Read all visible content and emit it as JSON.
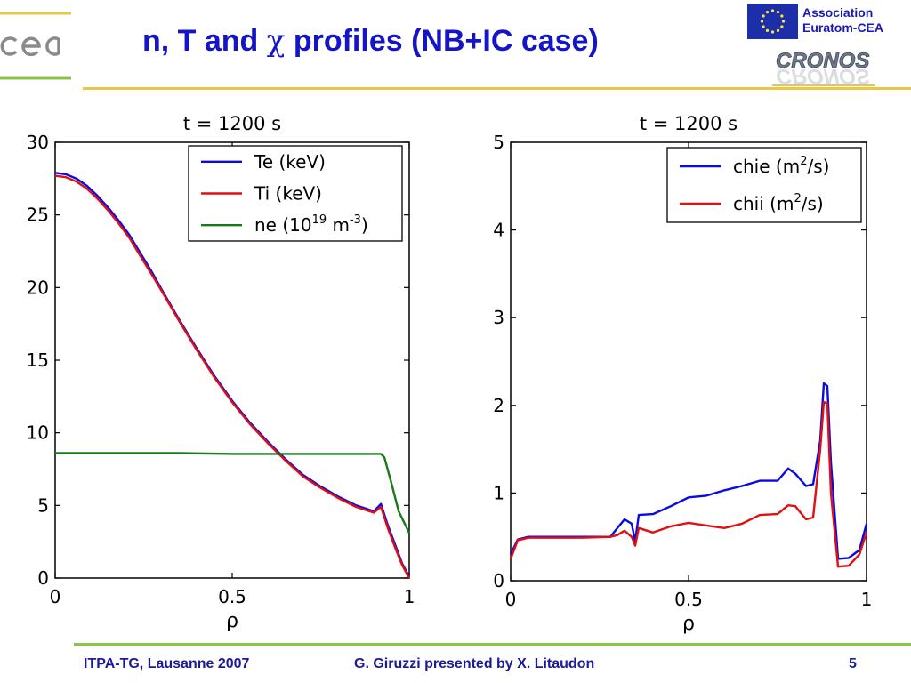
{
  "slide": {
    "title_pre": "n, T and ",
    "title_chi": "χ",
    "title_post": " profiles (NB+IC case)",
    "association": [
      "Association",
      "Euratom-CEA"
    ],
    "cronos": "CRONOS",
    "footer_left": "ITPA-TG, Lausanne  2007",
    "footer_center": "G. Giruzzi presented by X. Litaudon",
    "footer_page": "5",
    "colors": {
      "title": "#1515c8",
      "header_line": "#e8c845",
      "footer_line": "#8cc34a",
      "footer_text": "#1a1a9a",
      "cea_logo": "#8a8a8a",
      "eu_flag": "#1c2fa8"
    },
    "icons": [
      "cea-logo",
      "eu-flag-icon",
      "cronos-logo"
    ]
  },
  "chart_data": [
    {
      "type": "line",
      "title": "t = 1200 s",
      "xlabel": "ρ",
      "ylabel": "",
      "xlim": [
        0,
        1
      ],
      "ylim": [
        0,
        30
      ],
      "xticks": [
        "0",
        "0.5",
        "1"
      ],
      "yticks": [
        "0",
        "5",
        "10",
        "15",
        "20",
        "25",
        "30"
      ],
      "legend_position": "top-right",
      "grid": false,
      "series": [
        {
          "name": "Te (keV)",
          "legend": [
            "Te (keV)"
          ],
          "color": "#0a0ae6",
          "x": [
            0,
            0.03,
            0.06,
            0.09,
            0.12,
            0.15,
            0.18,
            0.21,
            0.24,
            0.27,
            0.3,
            0.35,
            0.4,
            0.45,
            0.5,
            0.55,
            0.6,
            0.65,
            0.7,
            0.75,
            0.8,
            0.85,
            0.9,
            0.92,
            0.94,
            0.96,
            0.98,
            1.0
          ],
          "y": [
            27.9,
            27.8,
            27.5,
            27.0,
            26.3,
            25.5,
            24.6,
            23.6,
            22.4,
            21.2,
            19.9,
            17.8,
            15.8,
            13.9,
            12.2,
            10.7,
            9.4,
            8.2,
            7.1,
            6.3,
            5.6,
            5.0,
            4.6,
            5.1,
            3.6,
            2.3,
            1.0,
            0.1
          ]
        },
        {
          "name": "Ti (keV)",
          "legend": [
            "Ti (keV)"
          ],
          "color": "#e01010",
          "x": [
            0,
            0.03,
            0.06,
            0.09,
            0.12,
            0.15,
            0.18,
            0.21,
            0.24,
            0.27,
            0.3,
            0.35,
            0.4,
            0.45,
            0.5,
            0.55,
            0.6,
            0.65,
            0.7,
            0.75,
            0.8,
            0.85,
            0.9,
            0.92,
            0.94,
            0.96,
            0.98,
            1.0
          ],
          "y": [
            27.7,
            27.6,
            27.3,
            26.8,
            26.1,
            25.3,
            24.4,
            23.4,
            22.2,
            21.0,
            19.8,
            17.7,
            15.7,
            13.8,
            12.1,
            10.6,
            9.3,
            8.1,
            7.0,
            6.2,
            5.5,
            4.9,
            4.5,
            4.9,
            3.4,
            2.1,
            0.9,
            0.0
          ]
        },
        {
          "name": "ne (10^19 m^-3)",
          "legend": [
            "ne (10",
            "19",
            " m",
            "-3",
            ")"
          ],
          "color": "#1a7a1a",
          "x": [
            0,
            0.2,
            0.35,
            0.5,
            0.7,
            0.85,
            0.92,
            0.93,
            0.95,
            0.97,
            1.0
          ],
          "y": [
            8.6,
            8.6,
            8.6,
            8.55,
            8.55,
            8.55,
            8.55,
            8.3,
            6.5,
            4.6,
            3.1
          ]
        }
      ]
    },
    {
      "type": "line",
      "title": "t = 1200 s",
      "xlabel": "ρ",
      "ylabel": "",
      "xlim": [
        0,
        1
      ],
      "ylim": [
        0,
        5
      ],
      "xticks": [
        "0",
        "0.5",
        "1"
      ],
      "yticks": [
        "0",
        "1",
        "2",
        "3",
        "4",
        "5"
      ],
      "legend_position": "top-right",
      "grid": false,
      "series": [
        {
          "name": "chie (m^2/s)",
          "legend": [
            "chie (m",
            "2",
            "/s)"
          ],
          "color": "#0a0ae6",
          "x": [
            0,
            0.02,
            0.05,
            0.1,
            0.2,
            0.28,
            0.3,
            0.32,
            0.34,
            0.35,
            0.36,
            0.4,
            0.45,
            0.5,
            0.55,
            0.6,
            0.65,
            0.7,
            0.75,
            0.78,
            0.8,
            0.83,
            0.85,
            0.87,
            0.88,
            0.89,
            0.9,
            0.92,
            0.95,
            0.98,
            1.0
          ],
          "y": [
            0.3,
            0.47,
            0.5,
            0.5,
            0.5,
            0.5,
            0.6,
            0.7,
            0.65,
            0.45,
            0.75,
            0.76,
            0.85,
            0.95,
            0.97,
            1.03,
            1.08,
            1.14,
            1.14,
            1.28,
            1.22,
            1.08,
            1.1,
            1.6,
            2.25,
            2.22,
            1.35,
            0.25,
            0.26,
            0.35,
            0.65
          ]
        },
        {
          "name": "chii (m^2/s)",
          "legend": [
            "chii (m",
            "2",
            "/s)"
          ],
          "color": "#e01010",
          "x": [
            0,
            0.02,
            0.05,
            0.1,
            0.2,
            0.28,
            0.3,
            0.32,
            0.34,
            0.35,
            0.36,
            0.4,
            0.45,
            0.5,
            0.55,
            0.6,
            0.65,
            0.7,
            0.75,
            0.78,
            0.8,
            0.83,
            0.85,
            0.87,
            0.88,
            0.89,
            0.9,
            0.92,
            0.95,
            0.98,
            1.0
          ],
          "y": [
            0.25,
            0.46,
            0.49,
            0.49,
            0.49,
            0.5,
            0.52,
            0.57,
            0.5,
            0.4,
            0.6,
            0.55,
            0.62,
            0.66,
            0.63,
            0.6,
            0.65,
            0.75,
            0.76,
            0.86,
            0.85,
            0.7,
            0.72,
            1.5,
            2.04,
            2.02,
            1.0,
            0.16,
            0.17,
            0.3,
            0.55
          ]
        }
      ]
    }
  ]
}
